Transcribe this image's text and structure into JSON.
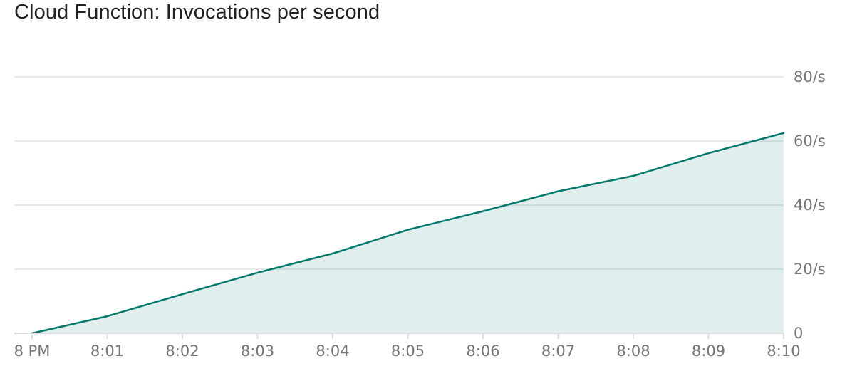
{
  "chart_data": {
    "type": "area",
    "title": "Cloud Function: Invocations per second",
    "x": [
      "8 PM",
      "8:01",
      "8:02",
      "8:03",
      "8:04",
      "8:05",
      "8:06",
      "8:07",
      "8:08",
      "8:09",
      "8:10"
    ],
    "series": [
      {
        "values": [
          0,
          5.3,
          12.2,
          18.9,
          24.9,
          32.3,
          38.1,
          44.3,
          49.1,
          56.2,
          62.5
        ]
      }
    ],
    "y_ticks": [
      {
        "value": 0,
        "label": "0"
      },
      {
        "value": 20,
        "label": "20/s"
      },
      {
        "value": 40,
        "label": "40/s"
      },
      {
        "value": 60,
        "label": "60/s"
      },
      {
        "value": 80,
        "label": "80/s"
      }
    ],
    "ylim": [
      0,
      80
    ],
    "grid": true,
    "y_axis_side": "right",
    "colors": {
      "line": "#00796b",
      "fill": "#00796b",
      "grid": "#e8eaed",
      "axis": "#dadce0",
      "tick_text": "#757575"
    }
  }
}
